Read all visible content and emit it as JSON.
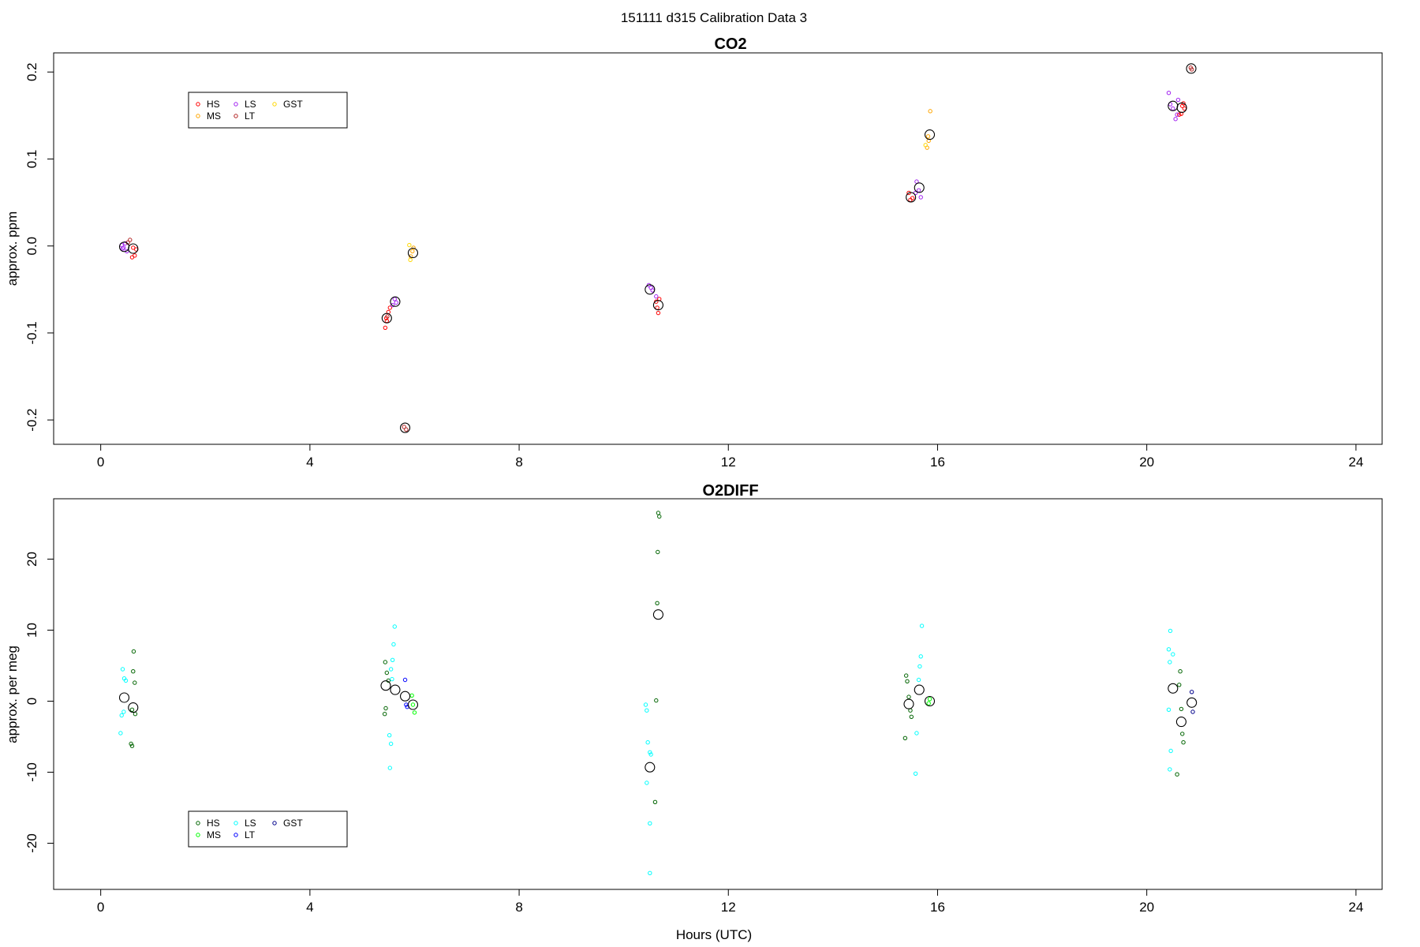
{
  "suptitle": "151111   d315   Calibration Data 3",
  "chart_data": [
    {
      "type": "scatter",
      "title": "CO2",
      "ylabel": "approx. ppm",
      "xlabel": "",
      "xlim": [
        -0.9,
        24.5
      ],
      "ylim": [
        -0.228,
        0.222
      ],
      "xticks": [
        "0",
        "4",
        "8",
        "12",
        "16",
        "20",
        "24"
      ],
      "yticks": [
        "-0.2",
        "-0.1",
        "0.0",
        "0.1",
        "0.2"
      ],
      "legend": {
        "position": "top-left",
        "entries": [
          {
            "name": "HS",
            "color": "#ff0000"
          },
          {
            "name": "MS",
            "color": "#ffa500"
          },
          {
            "name": "LS",
            "color": "#a020f0"
          },
          {
            "name": "LT",
            "color": "#b22222"
          },
          {
            "name": "GST",
            "color": "#ffd700"
          }
        ]
      },
      "series": [
        {
          "name": "HS",
          "color": "#ff0000",
          "points": [
            [
              0.6,
              -0.013
            ],
            [
              0.65,
              -0.011
            ],
            [
              0.68,
              -0.004
            ],
            [
              0.62,
              -0.002
            ],
            [
              5.44,
              -0.094
            ],
            [
              5.47,
              -0.086
            ],
            [
              5.5,
              -0.076
            ],
            [
              5.53,
              -0.071
            ],
            [
              5.46,
              -0.083
            ],
            [
              10.62,
              -0.064
            ],
            [
              10.66,
              -0.077
            ],
            [
              10.64,
              -0.071
            ],
            [
              10.68,
              -0.061
            ],
            [
              15.45,
              0.061
            ],
            [
              15.48,
              0.053
            ],
            [
              15.52,
              0.055
            ],
            [
              20.62,
              0.151
            ],
            [
              20.66,
              0.152
            ],
            [
              20.7,
              0.164
            ],
            [
              20.72,
              0.158
            ],
            [
              20.68,
              0.161
            ]
          ]
        },
        {
          "name": "MS",
          "color": "#ffa500",
          "points": [
            [
              5.93,
              -0.012
            ],
            [
              5.96,
              -0.006
            ],
            [
              5.98,
              -0.002
            ],
            [
              15.8,
              0.113
            ],
            [
              15.83,
              0.121
            ],
            [
              15.86,
              0.155
            ],
            [
              15.82,
              0.126
            ]
          ]
        },
        {
          "name": "LS",
          "color": "#a020f0",
          "points": [
            [
              0.4,
              0.001
            ],
            [
              0.44,
              -0.002
            ],
            [
              0.47,
              0.003
            ],
            [
              0.5,
              -0.006
            ],
            [
              0.42,
              -0.003
            ],
            [
              5.58,
              -0.068
            ],
            [
              5.62,
              -0.061
            ],
            [
              5.65,
              -0.065
            ],
            [
              10.48,
              -0.045
            ],
            [
              10.52,
              -0.048
            ],
            [
              10.55,
              -0.051
            ],
            [
              10.62,
              -0.058
            ],
            [
              15.6,
              0.074
            ],
            [
              15.64,
              0.064
            ],
            [
              15.68,
              0.056
            ],
            [
              15.58,
              0.061
            ],
            [
              20.42,
              0.176
            ],
            [
              20.45,
              0.163
            ],
            [
              20.5,
              0.158
            ],
            [
              20.55,
              0.146
            ],
            [
              20.58,
              0.151
            ],
            [
              20.6,
              0.168
            ]
          ]
        },
        {
          "name": "LT",
          "color": "#b22222",
          "points": [
            [
              0.52,
              0.004
            ],
            [
              0.56,
              0.007
            ],
            [
              5.8,
              -0.208
            ],
            [
              5.84,
              -0.211
            ],
            [
              5.48,
              -0.081
            ],
            [
              20.84,
              0.205
            ],
            [
              20.86,
              0.203
            ]
          ]
        },
        {
          "name": "GST",
          "color": "#ffd700",
          "points": [
            [
              5.9,
              0.001
            ],
            [
              5.92,
              -0.016
            ],
            [
              15.77,
              0.116
            ]
          ]
        },
        {
          "name": "mean",
          "color": "#000000",
          "large": true,
          "points": [
            [
              0.45,
              -0.001
            ],
            [
              0.62,
              -0.003
            ],
            [
              5.47,
              -0.083
            ],
            [
              5.63,
              -0.064
            ],
            [
              5.97,
              -0.008
            ],
            [
              5.82,
              -0.209
            ],
            [
              10.5,
              -0.05
            ],
            [
              10.66,
              -0.068
            ],
            [
              15.49,
              0.056
            ],
            [
              15.65,
              0.067
            ],
            [
              15.85,
              0.128
            ],
            [
              20.5,
              0.161
            ],
            [
              20.67,
              0.159
            ],
            [
              20.85,
              0.204
            ]
          ]
        }
      ]
    },
    {
      "type": "scatter",
      "title": "O2DIFF",
      "ylabel": "approx. per meg",
      "xlabel": "Hours (UTC)",
      "xlim": [
        -0.9,
        24.5
      ],
      "ylim": [
        -26.5,
        28.5
      ],
      "xticks": [
        "0",
        "4",
        "8",
        "12",
        "16",
        "20",
        "24"
      ],
      "yticks": [
        "-20",
        "-10",
        "0",
        "10",
        "20"
      ],
      "legend": {
        "position": "bottom-left",
        "entries": [
          {
            "name": "HS",
            "color": "#006400"
          },
          {
            "name": "MS",
            "color": "#00ff00"
          },
          {
            "name": "LS",
            "color": "#00ffff"
          },
          {
            "name": "LT",
            "color": "#0000ff"
          },
          {
            "name": "GST",
            "color": "#00008b"
          }
        ]
      },
      "series": [
        {
          "name": "HS",
          "color": "#006400",
          "points": [
            [
              0.63,
              7.0
            ],
            [
              0.62,
              4.2
            ],
            [
              0.65,
              2.6
            ],
            [
              0.6,
              -1.2
            ],
            [
              0.66,
              -1.8
            ],
            [
              0.58,
              -6.0
            ],
            [
              0.6,
              -6.3
            ],
            [
              5.44,
              5.5
            ],
            [
              5.47,
              4.0
            ],
            [
              5.5,
              2.9
            ],
            [
              5.45,
              -1.0
            ],
            [
              5.43,
              -1.8
            ],
            [
              10.66,
              26.5
            ],
            [
              10.68,
              26.0
            ],
            [
              10.65,
              21.0
            ],
            [
              10.64,
              13.8
            ],
            [
              10.62,
              0.1
            ],
            [
              10.6,
              -14.2
            ],
            [
              15.4,
              3.6
            ],
            [
              15.42,
              2.8
            ],
            [
              15.45,
              0.6
            ],
            [
              15.48,
              -1.3
            ],
            [
              15.5,
              -2.2
            ],
            [
              15.38,
              -5.2
            ],
            [
              20.64,
              4.2
            ],
            [
              20.62,
              2.3
            ],
            [
              20.66,
              -1.1
            ],
            [
              20.68,
              -4.6
            ],
            [
              20.7,
              -5.8
            ],
            [
              20.58,
              -10.3
            ]
          ]
        },
        {
          "name": "MS",
          "color": "#00ff00",
          "points": [
            [
              5.95,
              0.8
            ],
            [
              5.97,
              -0.5
            ],
            [
              6.0,
              -1.6
            ],
            [
              15.85,
              0.3
            ],
            [
              15.83,
              -0.3
            ]
          ]
        },
        {
          "name": "LS",
          "color": "#00ffff",
          "points": [
            [
              0.42,
              4.5
            ],
            [
              0.45,
              3.2
            ],
            [
              0.48,
              2.9
            ],
            [
              0.44,
              -1.5
            ],
            [
              0.4,
              -2.0
            ],
            [
              0.38,
              -4.5
            ],
            [
              5.62,
              10.5
            ],
            [
              5.6,
              8.0
            ],
            [
              5.58,
              5.8
            ],
            [
              5.55,
              4.5
            ],
            [
              5.57,
              3.1
            ],
            [
              5.52,
              -4.8
            ],
            [
              5.55,
              -6.0
            ],
            [
              5.53,
              -9.4
            ],
            [
              10.42,
              -0.5
            ],
            [
              10.44,
              -1.3
            ],
            [
              10.46,
              -5.8
            ],
            [
              10.5,
              -7.2
            ],
            [
              10.52,
              -7.5
            ],
            [
              10.44,
              -11.5
            ],
            [
              10.5,
              -17.2
            ],
            [
              10.5,
              -24.2
            ],
            [
              15.7,
              10.6
            ],
            [
              15.68,
              6.3
            ],
            [
              15.66,
              4.9
            ],
            [
              15.64,
              3.0
            ],
            [
              15.6,
              -4.5
            ],
            [
              15.58,
              -10.2
            ],
            [
              20.45,
              9.9
            ],
            [
              20.42,
              7.3
            ],
            [
              20.5,
              6.6
            ],
            [
              20.44,
              5.5
            ],
            [
              20.42,
              -1.2
            ],
            [
              20.46,
              -7.0
            ],
            [
              20.44,
              -9.6
            ]
          ]
        },
        {
          "name": "LT",
          "color": "#0000ff",
          "points": [
            [
              5.82,
              3.0
            ],
            [
              5.84,
              -0.5
            ],
            [
              5.86,
              -0.8
            ]
          ]
        },
        {
          "name": "GST",
          "color": "#00008b",
          "points": [
            [
              20.86,
              1.3
            ],
            [
              20.88,
              -1.5
            ]
          ]
        },
        {
          "name": "mean",
          "color": "#000000",
          "large": true,
          "points": [
            [
              0.45,
              0.5
            ],
            [
              0.62,
              -0.9
            ],
            [
              5.45,
              2.2
            ],
            [
              5.63,
              1.6
            ],
            [
              5.82,
              0.7
            ],
            [
              5.97,
              -0.5
            ],
            [
              10.5,
              -9.3
            ],
            [
              10.66,
              12.2
            ],
            [
              15.45,
              -0.4
            ],
            [
              15.65,
              1.6
            ],
            [
              15.85,
              0.0
            ],
            [
              20.5,
              1.8
            ],
            [
              20.66,
              -2.9
            ],
            [
              20.86,
              -0.2
            ]
          ]
        }
      ]
    }
  ]
}
